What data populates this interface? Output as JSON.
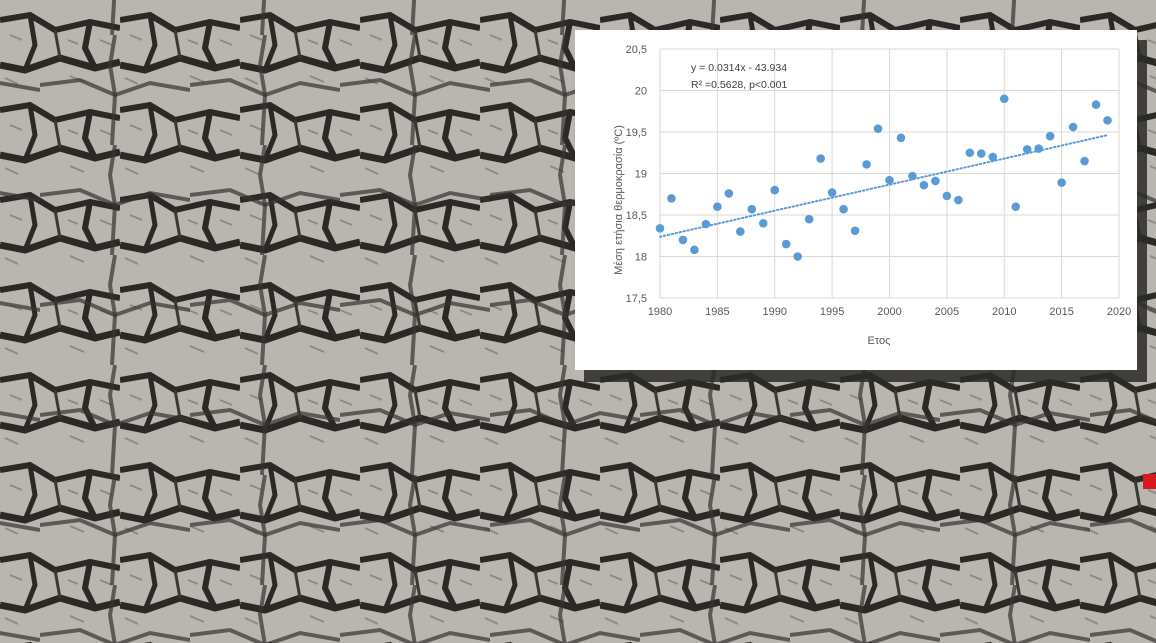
{
  "background": {
    "description_icon": "cracked-dry-earth-photo",
    "soil_color": "#b8b5ae",
    "crack_color": "#2b2926"
  },
  "marker_color": "#d71920",
  "chart_data": {
    "type": "scatter",
    "title": "",
    "xlabel": "Ετος",
    "ylabel": "Μέση ετήσια θερμοκρασία (ºC)",
    "xlim": [
      1980,
      2020
    ],
    "ylim": [
      17.5,
      20.5
    ],
    "xticks": [
      "1980",
      "1985",
      "1990",
      "1995",
      "2000",
      "2005",
      "2010",
      "2015",
      "2020"
    ],
    "yticks": [
      "17,5",
      "18",
      "18,5",
      "19",
      "19,5",
      "20",
      "20,5"
    ],
    "grid": true,
    "point_color": "#5b9bd5",
    "trendline": {
      "slope": 0.0314,
      "intercept": -43.934,
      "style": "dotted",
      "equation_text": "y = 0.0314x - 43.934",
      "stats_text": "R² =0.5628, p<0.001"
    },
    "series": [
      {
        "x": [
          1980,
          1981,
          1982,
          1983,
          1984,
          1985,
          1986,
          1987,
          1988,
          1989,
          1990,
          1991,
          1992,
          1993,
          1994,
          1995,
          1996,
          1997,
          1998,
          1999,
          2000,
          2001,
          2002,
          2003,
          2004,
          2005,
          2006,
          2007,
          2008,
          2009,
          2010,
          2011,
          2012,
          2013,
          2014,
          2015,
          2016,
          2017,
          2018,
          2019
        ],
        "y": [
          18.34,
          18.7,
          18.2,
          18.08,
          18.39,
          18.6,
          18.76,
          18.3,
          18.57,
          18.4,
          18.8,
          18.15,
          18.0,
          18.45,
          19.18,
          18.77,
          18.57,
          18.31,
          19.11,
          19.54,
          18.92,
          19.43,
          18.97,
          18.86,
          18.91,
          18.73,
          18.68,
          19.25,
          19.24,
          19.2,
          19.9,
          18.6,
          19.29,
          19.3,
          19.45,
          18.89,
          19.56,
          19.15,
          19.83,
          19.64
        ]
      }
    ]
  }
}
